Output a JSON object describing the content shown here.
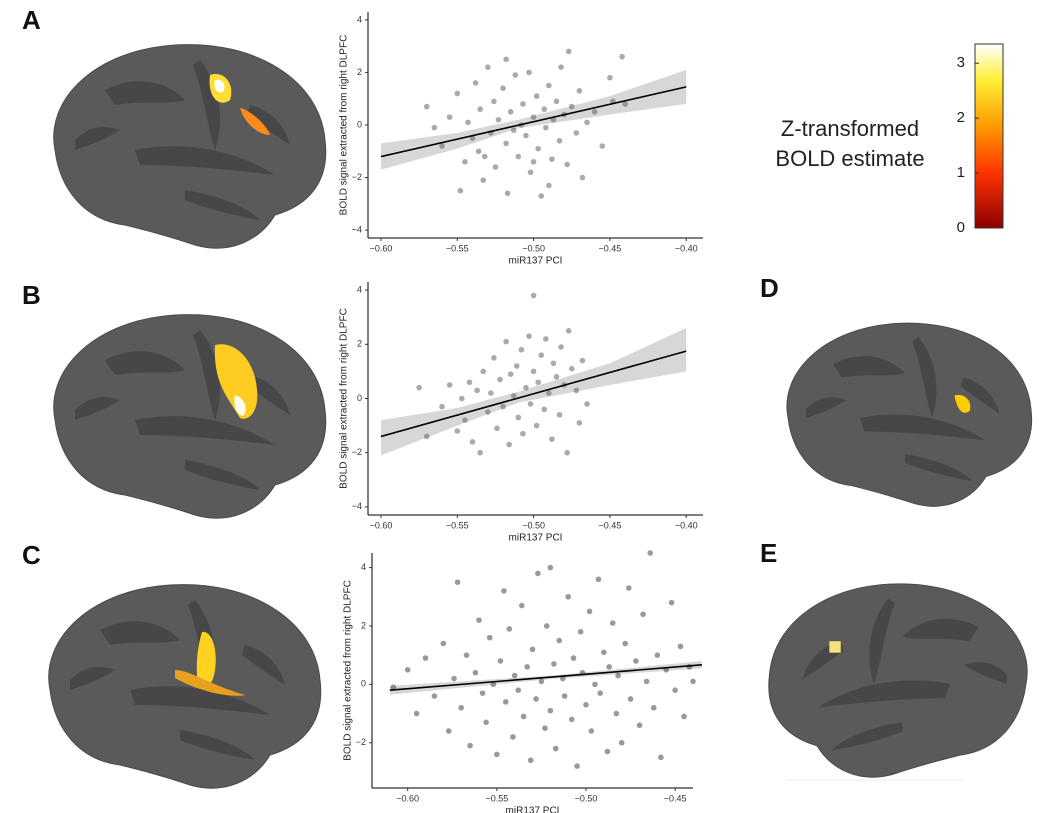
{
  "panels": [
    "A",
    "B",
    "C",
    "D",
    "E"
  ],
  "chart_data": [
    {
      "type": "scatter",
      "xlabel": "miR137 PCI",
      "ylabel": "BOLD signal extracted from right DLPFC",
      "color": "#555555",
      "xlim": [
        -0.6085,
        -0.389
      ],
      "ylim": [
        -4.3,
        4.3
      ],
      "xticks": [
        {
          "value": -0.6,
          "label": "−0.60"
        },
        {
          "value": -0.55,
          "label": "−0.55"
        },
        {
          "value": -0.5,
          "label": "−0.50"
        },
        {
          "value": -0.45,
          "label": "−0.45"
        },
        {
          "value": -0.4,
          "label": "−0.40"
        }
      ],
      "yticks": [
        {
          "value": -4,
          "label": "−4"
        },
        {
          "value": -2,
          "label": "−2"
        },
        0,
        2,
        4
      ],
      "x": [
        -0.57,
        -0.565,
        -0.56,
        -0.555,
        -0.55,
        -0.548,
        -0.545,
        -0.543,
        -0.54,
        -0.538,
        -0.536,
        -0.535,
        -0.533,
        -0.53,
        -0.528,
        -0.526,
        -0.525,
        -0.523,
        -0.52,
        -0.518,
        -0.517,
        -0.515,
        -0.513,
        -0.512,
        -0.51,
        -0.508,
        -0.507,
        -0.505,
        -0.503,
        -0.502,
        -0.5,
        -0.498,
        -0.497,
        -0.495,
        -0.493,
        -0.492,
        -0.49,
        -0.488,
        -0.487,
        -0.485,
        -0.483,
        -0.482,
        -0.48,
        -0.478,
        -0.477,
        -0.475,
        -0.472,
        -0.47,
        -0.468,
        -0.465,
        -0.46,
        -0.455,
        -0.45,
        -0.448,
        -0.442,
        -0.44,
        -0.518,
        -0.532,
        -0.5,
        -0.49
      ],
      "values": [
        0.7,
        -0.1,
        -0.8,
        0.3,
        1.2,
        -2.5,
        -1.4,
        0.1,
        -0.5,
        1.6,
        -1.0,
        0.6,
        -2.1,
        2.2,
        -0.3,
        0.9,
        -1.6,
        0.2,
        1.4,
        -0.7,
        -2.6,
        0.5,
        -0.2,
        1.9,
        -1.2,
        0.0,
        0.8,
        -0.4,
        2.0,
        -1.8,
        0.3,
        1.1,
        -0.9,
        -2.7,
        0.6,
        -0.1,
        1.5,
        -1.3,
        0.2,
        0.9,
        -0.6,
        2.2,
        0.4,
        -1.5,
        2.8,
        0.7,
        -0.3,
        1.3,
        -2.0,
        0.1,
        0.5,
        -0.8,
        1.8,
        0.9,
        2.6,
        0.8,
        2.5,
        -1.2,
        -1.4,
        -2.3
      ],
      "fit": {
        "x": [
          -0.6,
          -0.4
        ],
        "values": [
          -1.2,
          1.45
        ]
      },
      "band": {
        "x": [
          -0.6,
          -0.55,
          -0.51,
          -0.45,
          -0.4
        ],
        "lower": [
          -1.7,
          -0.9,
          -0.12,
          0.4,
          0.8
        ],
        "upper": [
          -0.7,
          -0.3,
          0.2,
          1.1,
          2.1
        ]
      }
    },
    {
      "type": "scatter",
      "xlabel": "miR137 PCI",
      "ylabel": "BOLD signal extracted from right DLPFC",
      "color": "#555555",
      "xlim": [
        -0.6085,
        -0.389
      ],
      "ylim": [
        -4.3,
        4.3
      ],
      "xticks": [
        {
          "value": -0.6,
          "label": "−0.60"
        },
        {
          "value": -0.55,
          "label": "−0.55"
        },
        {
          "value": -0.5,
          "label": "−0.50"
        },
        {
          "value": -0.45,
          "label": "−0.45"
        },
        {
          "value": -0.4,
          "label": "−0.40"
        }
      ],
      "yticks": [
        {
          "value": -4,
          "label": "−4"
        },
        {
          "value": -2,
          "label": "−2"
        },
        0,
        2,
        4
      ],
      "x": [
        -0.575,
        -0.57,
        -0.56,
        -0.555,
        -0.55,
        -0.547,
        -0.545,
        -0.542,
        -0.54,
        -0.537,
        -0.535,
        -0.533,
        -0.53,
        -0.528,
        -0.526,
        -0.524,
        -0.522,
        -0.52,
        -0.518,
        -0.516,
        -0.515,
        -0.513,
        -0.511,
        -0.51,
        -0.508,
        -0.507,
        -0.505,
        -0.503,
        -0.502,
        -0.5,
        -0.5,
        -0.498,
        -0.497,
        -0.495,
        -0.493,
        -0.492,
        -0.49,
        -0.488,
        -0.487,
        -0.485,
        -0.483,
        -0.482,
        -0.48,
        -0.478,
        -0.477,
        -0.475,
        -0.472,
        -0.47,
        -0.468,
        -0.465
      ],
      "values": [
        0.4,
        -1.4,
        -0.3,
        0.5,
        -1.2,
        0.0,
        -0.8,
        0.6,
        -1.6,
        0.3,
        -2.0,
        1.0,
        -0.5,
        0.2,
        1.5,
        -1.1,
        0.7,
        -0.3,
        2.1,
        -1.7,
        0.9,
        0.1,
        1.2,
        -0.7,
        1.8,
        -1.3,
        0.4,
        2.3,
        -0.2,
        3.8,
        1.0,
        -1.0,
        0.6,
        1.6,
        -0.4,
        2.2,
        0.2,
        -1.5,
        1.3,
        0.8,
        -0.6,
        1.9,
        0.5,
        -2.0,
        2.5,
        1.1,
        0.3,
        -0.9,
        1.4,
        -0.2
      ],
      "fit": {
        "x": [
          -0.6,
          -0.4
        ],
        "values": [
          -1.4,
          1.75
        ]
      },
      "band": {
        "x": [
          -0.6,
          -0.55,
          -0.51,
          -0.45,
          -0.4
        ],
        "lower": [
          -2.1,
          -1.0,
          -0.15,
          0.5,
          1.0
        ],
        "upper": [
          -0.8,
          -0.35,
          0.25,
          1.3,
          2.6
        ]
      }
    },
    {
      "type": "scatter",
      "xlabel": "miR137 PCI",
      "ylabel": "BOLD signal extracted from right DLPFC",
      "color": "#333333",
      "xlim": [
        -0.62,
        -0.44
      ],
      "ylim": [
        -3.55,
        4.5
      ],
      "xticks": [
        {
          "value": -0.6,
          "label": "−0.60"
        },
        {
          "value": -0.55,
          "label": "−0.55"
        },
        {
          "value": -0.5,
          "label": "−0.50"
        },
        {
          "value": -0.45,
          "label": "−0.45"
        }
      ],
      "yticks": [
        {
          "value": -2,
          "label": "−2"
        },
        0,
        2,
        4
      ],
      "x": [
        -0.608,
        -0.6,
        -0.595,
        -0.59,
        -0.585,
        -0.58,
        -0.577,
        -0.574,
        -0.572,
        -0.57,
        -0.567,
        -0.565,
        -0.562,
        -0.56,
        -0.558,
        -0.556,
        -0.554,
        -0.552,
        -0.55,
        -0.548,
        -0.546,
        -0.545,
        -0.543,
        -0.541,
        -0.54,
        -0.538,
        -0.536,
        -0.535,
        -0.533,
        -0.531,
        -0.53,
        -0.528,
        -0.527,
        -0.525,
        -0.523,
        -0.522,
        -0.52,
        -0.518,
        -0.517,
        -0.515,
        -0.513,
        -0.512,
        -0.51,
        -0.508,
        -0.507,
        -0.505,
        -0.503,
        -0.502,
        -0.5,
        -0.498,
        -0.497,
        -0.495,
        -0.493,
        -0.492,
        -0.49,
        -0.488,
        -0.487,
        -0.485,
        -0.483,
        -0.482,
        -0.48,
        -0.478,
        -0.476,
        -0.475,
        -0.472,
        -0.47,
        -0.468,
        -0.466,
        -0.464,
        -0.462,
        -0.46,
        -0.458,
        -0.455,
        -0.452,
        -0.45,
        -0.447,
        -0.445,
        -0.442,
        -0.44,
        -0.52
      ],
      "values": [
        -0.1,
        0.5,
        -1.0,
        0.9,
        -0.4,
        1.4,
        -1.6,
        0.2,
        3.5,
        -0.8,
        1.0,
        -2.1,
        0.4,
        2.2,
        -0.3,
        -1.3,
        1.6,
        0.0,
        -2.4,
        0.8,
        3.2,
        -0.6,
        1.9,
        -1.8,
        0.3,
        -0.2,
        2.7,
        -1.1,
        0.6,
        -2.6,
        1.2,
        -0.5,
        3.8,
        0.1,
        -1.5,
        2.0,
        -0.9,
        0.7,
        -2.2,
        1.5,
        0.2,
        -0.4,
        3.0,
        -1.2,
        0.9,
        -2.8,
        1.8,
        0.4,
        -0.7,
        2.5,
        -1.6,
        0.0,
        3.6,
        -0.3,
        1.1,
        -2.3,
        0.6,
        2.1,
        -1.0,
        0.3,
        -2.0,
        1.4,
        3.3,
        -0.5,
        0.8,
        -1.4,
        2.4,
        0.1,
        4.5,
        -0.8,
        1.0,
        -2.5,
        0.5,
        2.8,
        -0.2,
        1.3,
        -1.1,
        0.6,
        0.1,
        4.0
      ],
      "fit": {
        "x": [
          -0.61,
          -0.435
        ],
        "values": [
          -0.2,
          0.67
        ]
      },
      "band": {
        "x": [
          -0.61,
          -0.52,
          -0.435
        ],
        "lower": [
          -0.35,
          0.18,
          0.55
        ],
        "upper": [
          -0.05,
          0.3,
          0.8
        ]
      }
    },
    {
      "type": "colorbar",
      "title_lines": [
        "Z-transformed",
        "BOLD estimate"
      ],
      "lim": [
        0,
        3.35
      ],
      "ticks": [
        0,
        1,
        2,
        3
      ]
    }
  ]
}
